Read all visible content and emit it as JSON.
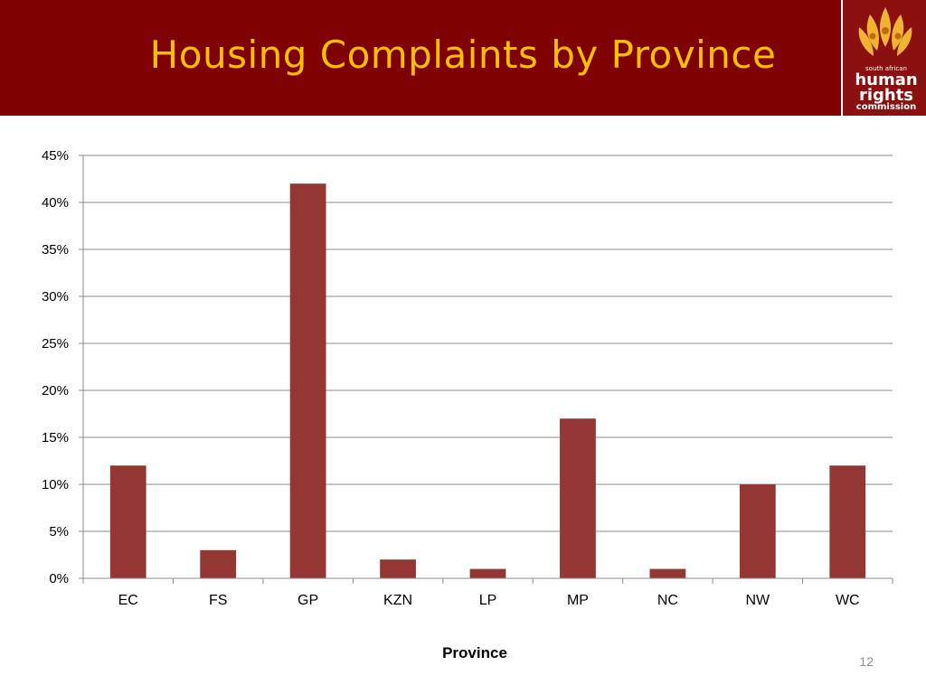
{
  "slide": {
    "title": "Housing Complaints by Province",
    "page_number": "12",
    "colors": {
      "header_bg": "#7f0000",
      "title": "#ffc000",
      "bar": "#943634"
    }
  },
  "logo": {
    "icon": "flame-people-icon",
    "line1": "south african",
    "line2": "human",
    "line3": "rights",
    "line4": "commission"
  },
  "chart_data": {
    "type": "bar",
    "categories": [
      "EC",
      "FS",
      "GP",
      "KZN",
      "LP",
      "MP",
      "NC",
      "NW",
      "WC"
    ],
    "values": [
      12,
      3,
      42,
      2,
      1,
      17,
      1,
      10,
      12
    ],
    "unit": "%",
    "xlabel": "Province",
    "ylabel": "",
    "ylim": [
      0,
      45
    ],
    "yticks": [
      0,
      5,
      10,
      15,
      20,
      25,
      30,
      35,
      40,
      45
    ],
    "ytick_labels": [
      "0%",
      "5%",
      "10%",
      "15%",
      "20%",
      "25%",
      "30%",
      "35%",
      "40%",
      "45%"
    ],
    "grid": true,
    "legend": "none"
  }
}
